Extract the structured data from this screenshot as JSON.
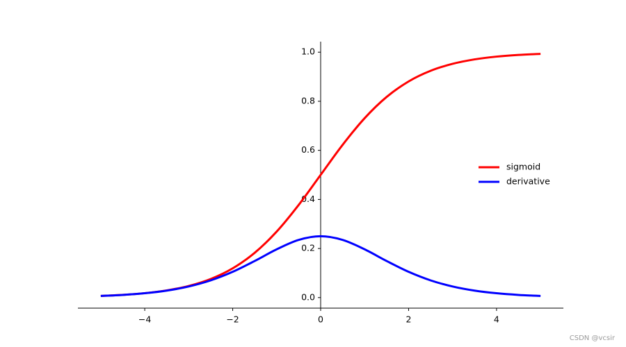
{
  "chart_data": {
    "type": "line",
    "x": [
      -5,
      -4.5,
      -4,
      -3.5,
      -3,
      -2.5,
      -2,
      -1.5,
      -1,
      -0.5,
      0,
      0.5,
      1,
      1.5,
      2,
      2.5,
      3,
      3.5,
      4,
      4.5,
      5
    ],
    "series": [
      {
        "name": "sigmoid",
        "color": "#ff0000",
        "values": [
          0.00669,
          0.01099,
          0.01799,
          0.02931,
          0.04743,
          0.07586,
          0.1192,
          0.18243,
          0.26894,
          0.37754,
          0.5,
          0.62246,
          0.73106,
          0.81757,
          0.8808,
          0.92414,
          0.95257,
          0.97069,
          0.98201,
          0.98901,
          0.99331
        ]
      },
      {
        "name": "derivative",
        "color": "#0000ff",
        "values": [
          0.00665,
          0.01087,
          0.01766,
          0.02845,
          0.04518,
          0.0701,
          0.10499,
          0.14915,
          0.19661,
          0.235,
          0.25,
          0.235,
          0.19661,
          0.14915,
          0.10499,
          0.0701,
          0.04518,
          0.02845,
          0.01766,
          0.01087,
          0.00665
        ]
      }
    ],
    "xlim": [
      -5.52,
      5.52
    ],
    "ylim": [
      -0.043,
      1.043
    ],
    "xticks": [
      {
        "value": -4,
        "label": "−4"
      },
      {
        "value": -2,
        "label": "−2"
      },
      0,
      2,
      4
    ],
    "yticks": [
      {
        "value": 0,
        "label": "0.0"
      },
      0.2,
      0.4,
      0.6,
      0.8,
      {
        "value": 1,
        "label": "1.0"
      }
    ],
    "legend": "center right",
    "watermark": "CSDN @vcsir"
  }
}
